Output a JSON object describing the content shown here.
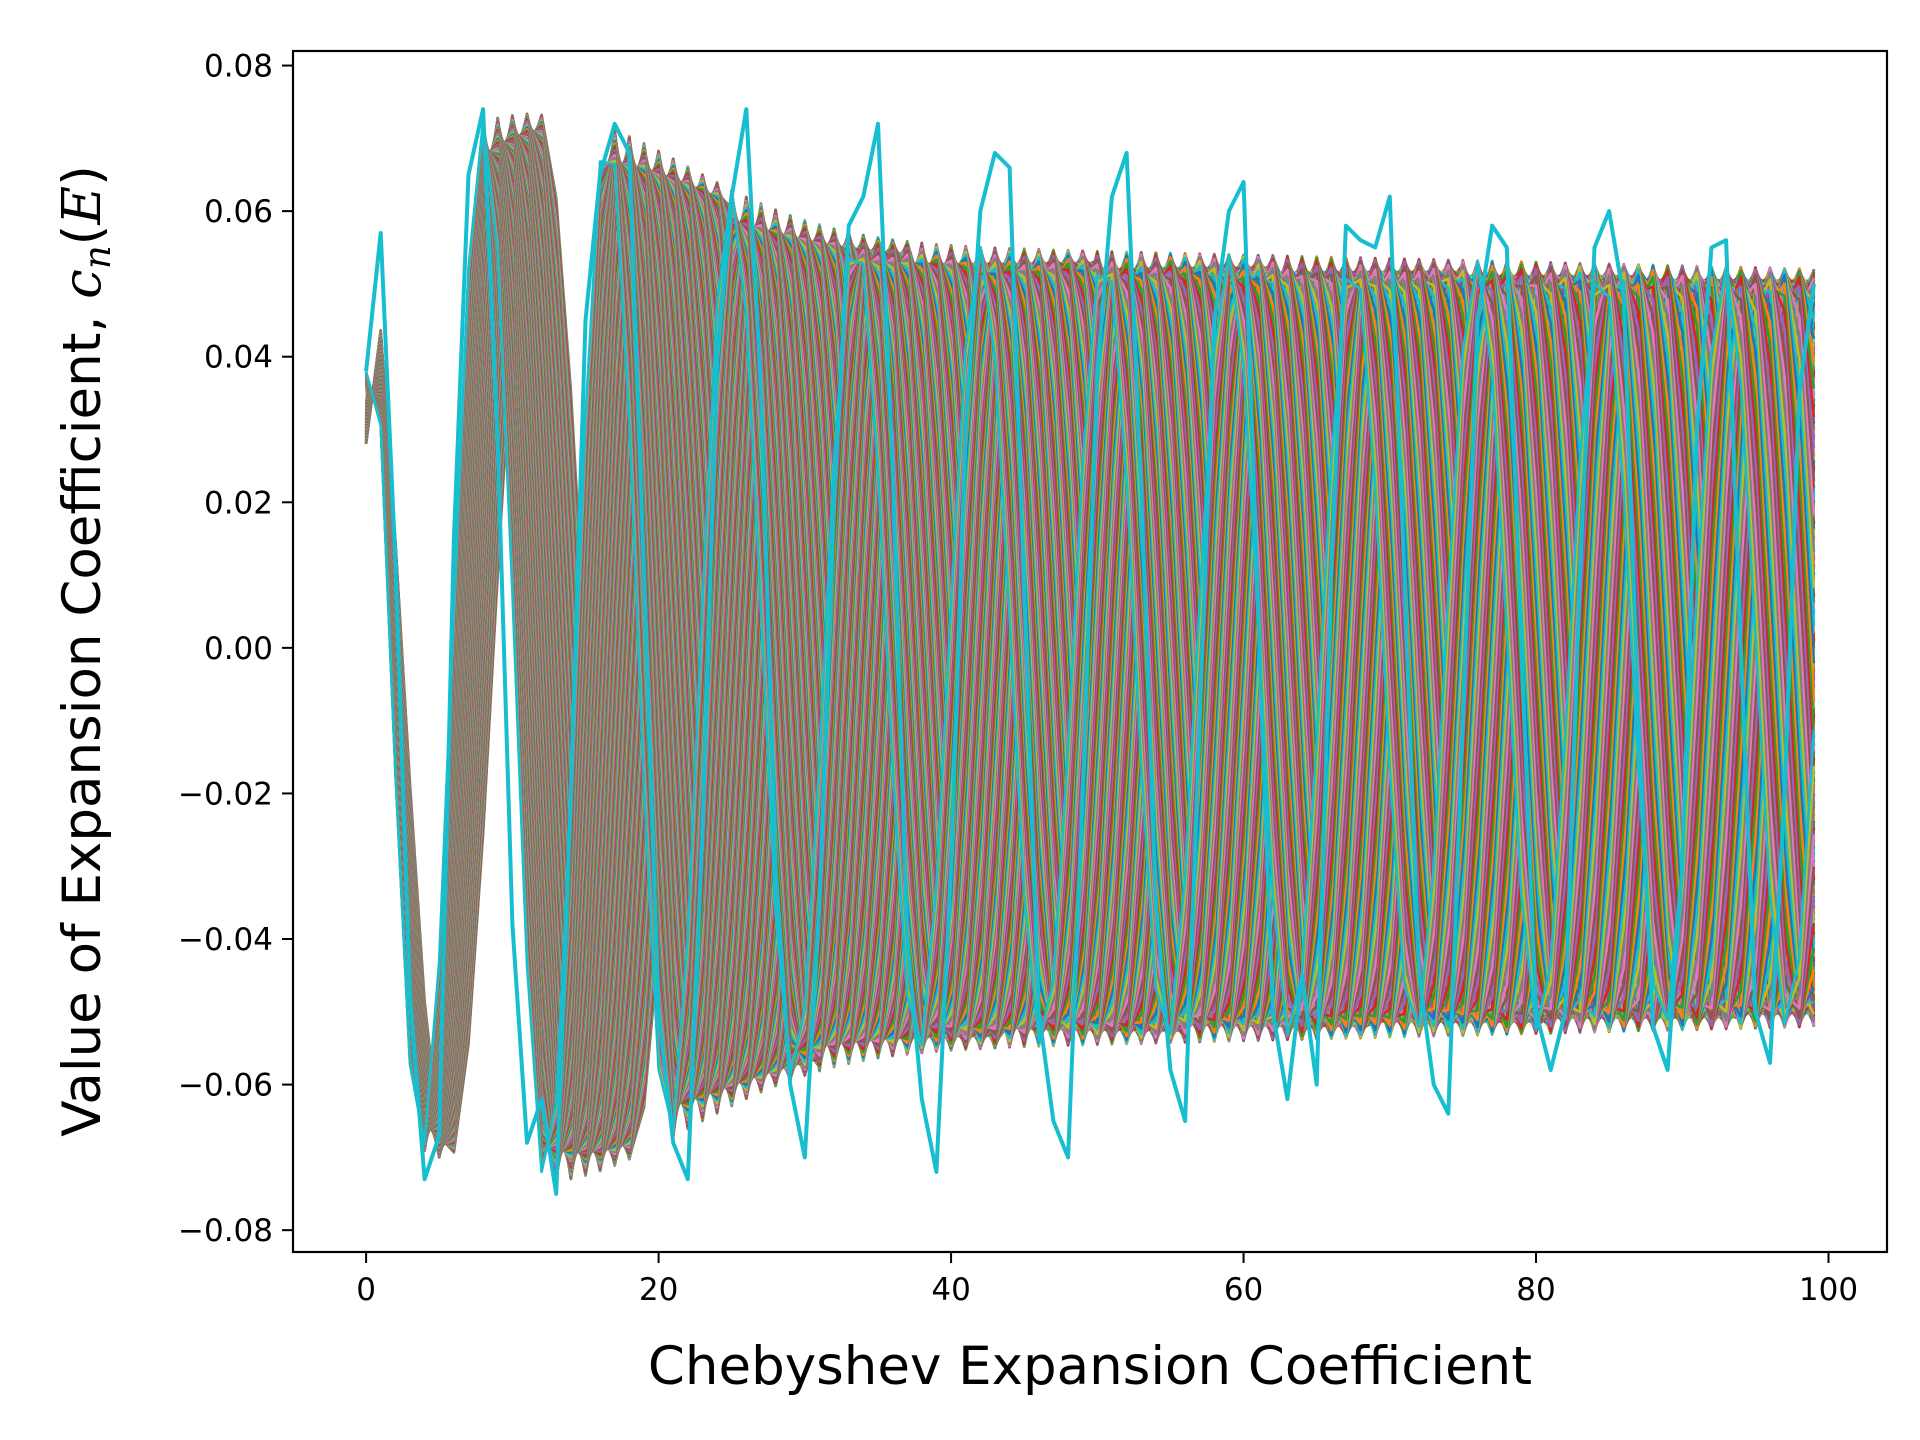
{
  "chart_data": {
    "type": "line",
    "title": "",
    "xlabel": "Chebyshev Expansion Coefficient",
    "ylabel": {
      "prefix": "Value of Expansion Coefficient, ",
      "symbol": "c",
      "subscript": "n",
      "open": "(",
      "arg": "E",
      "close": ")"
    },
    "xlim": [
      -5,
      104
    ],
    "ylim": [
      -0.083,
      0.082
    ],
    "x_ticks": [
      0,
      20,
      40,
      60,
      80,
      100
    ],
    "x_tick_labels": [
      "0",
      "20",
      "40",
      "60",
      "80",
      "100"
    ],
    "y_ticks": [
      -0.08,
      -0.06,
      -0.04,
      -0.02,
      0.0,
      0.02,
      0.04,
      0.06,
      0.08
    ],
    "y_tick_labels": [
      "−0.08",
      "−0.06",
      "−0.04",
      "−0.02",
      "0.00",
      "0.02",
      "0.04",
      "0.06",
      "0.08"
    ],
    "grid": false,
    "legend": "none",
    "n_coefficients": 100,
    "series_description": "dense family of oscillating curves over n = 0..99, one per energy E, cycling the default color palette",
    "palette": [
      "#1f77b4",
      "#ff7f0e",
      "#2ca02c",
      "#d62728",
      "#9467bd",
      "#8c564b",
      "#e377c2",
      "#7f7f7f",
      "#bcbd22",
      "#17becf"
    ],
    "highlight_series": {
      "color": "#17becf",
      "x": [
        0,
        1,
        2,
        3,
        4,
        5,
        6,
        7,
        8,
        9,
        10,
        11,
        12,
        13,
        14,
        15,
        16,
        17,
        18,
        19,
        20,
        21,
        22,
        23,
        24,
        25,
        26,
        27,
        28,
        29,
        30,
        31,
        32,
        33,
        34,
        35,
        36,
        37,
        38,
        39,
        40,
        41,
        42,
        43,
        44,
        45,
        46,
        47,
        48,
        49,
        50,
        51,
        52,
        53,
        54,
        55,
        56,
        57,
        58,
        59,
        60,
        61,
        62,
        63,
        64,
        65,
        66,
        67,
        68,
        69,
        70,
        71,
        72,
        73,
        74,
        75,
        76,
        77,
        78,
        79,
        80,
        81,
        82,
        83,
        84,
        85,
        86,
        87,
        88,
        89,
        90,
        91,
        92,
        93,
        94,
        95,
        96,
        97,
        98,
        99
      ],
      "y": [
        0.038,
        0.057,
        0.012,
        -0.048,
        -0.073,
        -0.067,
        0.015,
        0.065,
        0.074,
        0.028,
        -0.038,
        -0.068,
        -0.062,
        -0.075,
        -0.02,
        0.045,
        0.065,
        0.072,
        0.068,
        0.01,
        -0.05,
        -0.068,
        -0.073,
        -0.025,
        0.04,
        0.062,
        0.074,
        0.035,
        -0.03,
        -0.06,
        -0.07,
        -0.035,
        0.02,
        0.058,
        0.062,
        0.072,
        0.025,
        -0.04,
        -0.062,
        -0.072,
        -0.03,
        0.03,
        0.06,
        0.068,
        0.066,
        0.008,
        -0.05,
        -0.065,
        -0.07,
        -0.02,
        0.038,
        0.062,
        0.068,
        0.022,
        -0.035,
        -0.058,
        -0.065,
        -0.01,
        0.045,
        0.06,
        0.064,
        0.005,
        -0.05,
        -0.062,
        -0.045,
        -0.06,
        0.01,
        0.058,
        0.056,
        0.055,
        0.062,
        0.01,
        -0.045,
        -0.06,
        -0.064,
        -0.01,
        0.045,
        0.058,
        0.055,
        0.0,
        -0.05,
        -0.058,
        -0.05,
        0.01,
        0.055,
        0.06,
        0.048,
        -0.01,
        -0.052,
        -0.058,
        -0.03,
        0.03,
        0.055,
        0.056,
        0.0,
        -0.05,
        -0.057,
        -0.02,
        0.035,
        0.05
      ]
    }
  }
}
